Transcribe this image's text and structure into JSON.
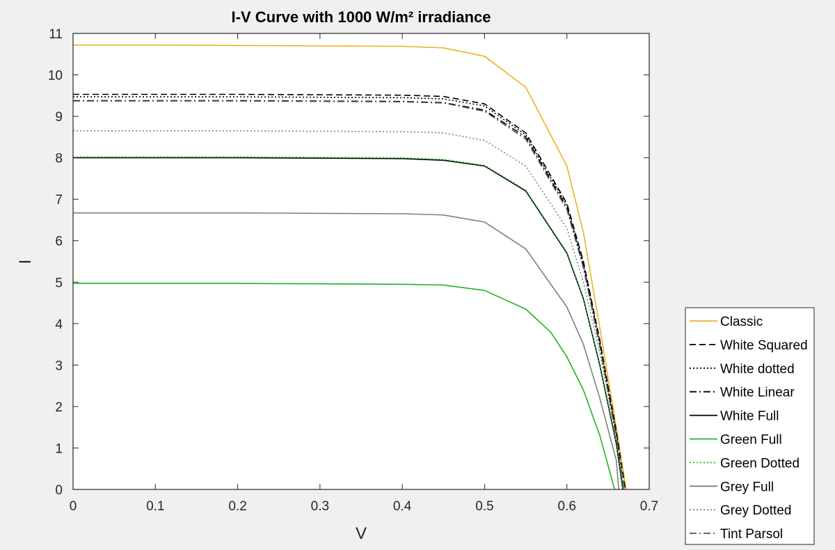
{
  "chart_data": {
    "type": "line",
    "title": "I-V Curve with 1000 W/m² irradiance",
    "xlabel": "V",
    "ylabel": "I",
    "xlim": [
      0,
      0.7
    ],
    "ylim": [
      0,
      11
    ],
    "xticks": [
      0,
      0.1,
      0.2,
      0.3,
      0.4,
      0.5,
      0.6,
      0.7
    ],
    "yticks": [
      0,
      1,
      2,
      3,
      4,
      5,
      6,
      7,
      8,
      9,
      10,
      11
    ],
    "grid": false,
    "legend_position": "bottom-right-outside",
    "series": [
      {
        "name": "Classic",
        "color": "#EDB120",
        "style": "solid",
        "isc": 10.72,
        "voc": 0.672,
        "points": [
          [
            0,
            10.72
          ],
          [
            0.1,
            10.72
          ],
          [
            0.2,
            10.71
          ],
          [
            0.3,
            10.7
          ],
          [
            0.4,
            10.69
          ],
          [
            0.45,
            10.65
          ],
          [
            0.5,
            10.45
          ],
          [
            0.55,
            9.7
          ],
          [
            0.6,
            7.8
          ],
          [
            0.62,
            6.2
          ],
          [
            0.64,
            3.9
          ],
          [
            0.66,
            1.5
          ],
          [
            0.672,
            0
          ]
        ]
      },
      {
        "name": "White Squared",
        "color": "#000000",
        "style": "dashed",
        "isc": 9.53,
        "voc": 0.671,
        "points": [
          [
            0,
            9.53
          ],
          [
            0.1,
            9.53
          ],
          [
            0.2,
            9.53
          ],
          [
            0.3,
            9.52
          ],
          [
            0.4,
            9.51
          ],
          [
            0.45,
            9.48
          ],
          [
            0.5,
            9.3
          ],
          [
            0.55,
            8.6
          ],
          [
            0.6,
            6.9
          ],
          [
            0.62,
            5.5
          ],
          [
            0.64,
            3.6
          ],
          [
            0.66,
            1.4
          ],
          [
            0.671,
            0
          ]
        ]
      },
      {
        "name": "White dotted",
        "color": "#000000",
        "style": "dotted",
        "isc": 9.47,
        "voc": 0.67,
        "points": [
          [
            0,
            9.47
          ],
          [
            0.1,
            9.47
          ],
          [
            0.2,
            9.47
          ],
          [
            0.3,
            9.46
          ],
          [
            0.4,
            9.45
          ],
          [
            0.45,
            9.42
          ],
          [
            0.5,
            9.25
          ],
          [
            0.55,
            8.55
          ],
          [
            0.6,
            6.85
          ],
          [
            0.62,
            5.45
          ],
          [
            0.64,
            3.55
          ],
          [
            0.66,
            1.35
          ],
          [
            0.67,
            0
          ]
        ]
      },
      {
        "name": "White Linear",
        "color": "#000000",
        "style": "dashdot",
        "isc": 9.38,
        "voc": 0.669,
        "points": [
          [
            0,
            9.38
          ],
          [
            0.1,
            9.38
          ],
          [
            0.2,
            9.38
          ],
          [
            0.3,
            9.37
          ],
          [
            0.4,
            9.36
          ],
          [
            0.45,
            9.33
          ],
          [
            0.5,
            9.15
          ],
          [
            0.55,
            8.5
          ],
          [
            0.6,
            6.8
          ],
          [
            0.62,
            5.4
          ],
          [
            0.64,
            3.5
          ],
          [
            0.66,
            1.3
          ],
          [
            0.669,
            0
          ]
        ]
      },
      {
        "name": "White Full",
        "color": "#000000",
        "style": "solid",
        "isc": 8.0,
        "voc": 0.668,
        "points": [
          [
            0,
            8.0
          ],
          [
            0.1,
            8.0
          ],
          [
            0.2,
            8.0
          ],
          [
            0.3,
            7.99
          ],
          [
            0.4,
            7.98
          ],
          [
            0.45,
            7.94
          ],
          [
            0.5,
            7.8
          ],
          [
            0.55,
            7.2
          ],
          [
            0.6,
            5.7
          ],
          [
            0.62,
            4.6
          ],
          [
            0.64,
            3.0
          ],
          [
            0.66,
            1.1
          ],
          [
            0.668,
            0
          ]
        ]
      },
      {
        "name": "Green Full",
        "color": "#1EB41E",
        "style": "solid",
        "isc": 4.97,
        "voc": 0.658,
        "points": [
          [
            0,
            4.97
          ],
          [
            0.1,
            4.97
          ],
          [
            0.2,
            4.97
          ],
          [
            0.3,
            4.96
          ],
          [
            0.4,
            4.95
          ],
          [
            0.45,
            4.93
          ],
          [
            0.5,
            4.8
          ],
          [
            0.55,
            4.35
          ],
          [
            0.58,
            3.8
          ],
          [
            0.6,
            3.2
          ],
          [
            0.62,
            2.4
          ],
          [
            0.64,
            1.3
          ],
          [
            0.658,
            0
          ]
        ]
      },
      {
        "name": "Green Dotted",
        "color": "#1EB41E",
        "style": "dotted",
        "isc": 8.02,
        "voc": 0.668,
        "points": [
          [
            0,
            8.02
          ],
          [
            0.1,
            8.02
          ],
          [
            0.2,
            8.02
          ],
          [
            0.3,
            8.01
          ],
          [
            0.4,
            8.0
          ],
          [
            0.45,
            7.96
          ],
          [
            0.5,
            7.82
          ],
          [
            0.55,
            7.22
          ],
          [
            0.6,
            5.72
          ],
          [
            0.62,
            4.62
          ],
          [
            0.64,
            3.02
          ],
          [
            0.66,
            1.12
          ],
          [
            0.668,
            0
          ]
        ]
      },
      {
        "name": "Grey Full",
        "color": "#808080",
        "style": "solid",
        "isc": 6.67,
        "voc": 0.663,
        "points": [
          [
            0,
            6.67
          ],
          [
            0.1,
            6.67
          ],
          [
            0.2,
            6.67
          ],
          [
            0.3,
            6.66
          ],
          [
            0.4,
            6.65
          ],
          [
            0.45,
            6.62
          ],
          [
            0.5,
            6.45
          ],
          [
            0.55,
            5.8
          ],
          [
            0.6,
            4.4
          ],
          [
            0.62,
            3.5
          ],
          [
            0.64,
            2.2
          ],
          [
            0.66,
            0.7
          ],
          [
            0.663,
            0
          ]
        ]
      },
      {
        "name": "Grey Dotted",
        "color": "#808080",
        "style": "dotted",
        "isc": 8.65,
        "voc": 0.67,
        "points": [
          [
            0,
            8.65
          ],
          [
            0.1,
            8.65
          ],
          [
            0.2,
            8.65
          ],
          [
            0.3,
            8.64
          ],
          [
            0.4,
            8.63
          ],
          [
            0.45,
            8.6
          ],
          [
            0.5,
            8.42
          ],
          [
            0.55,
            7.8
          ],
          [
            0.6,
            6.3
          ],
          [
            0.62,
            5.0
          ],
          [
            0.64,
            3.3
          ],
          [
            0.66,
            1.25
          ],
          [
            0.67,
            0
          ]
        ]
      },
      {
        "name": "Tint Parsol",
        "color": "#555555",
        "style": "dashdot",
        "isc": 9.37,
        "voc": 0.669,
        "points": [
          [
            0,
            9.37
          ],
          [
            0.1,
            9.37
          ],
          [
            0.2,
            9.37
          ],
          [
            0.3,
            9.36
          ],
          [
            0.4,
            9.35
          ],
          [
            0.45,
            9.32
          ],
          [
            0.5,
            9.12
          ],
          [
            0.55,
            8.45
          ],
          [
            0.6,
            6.75
          ],
          [
            0.62,
            5.35
          ],
          [
            0.64,
            3.45
          ],
          [
            0.66,
            1.25
          ],
          [
            0.669,
            0
          ]
        ]
      }
    ]
  }
}
